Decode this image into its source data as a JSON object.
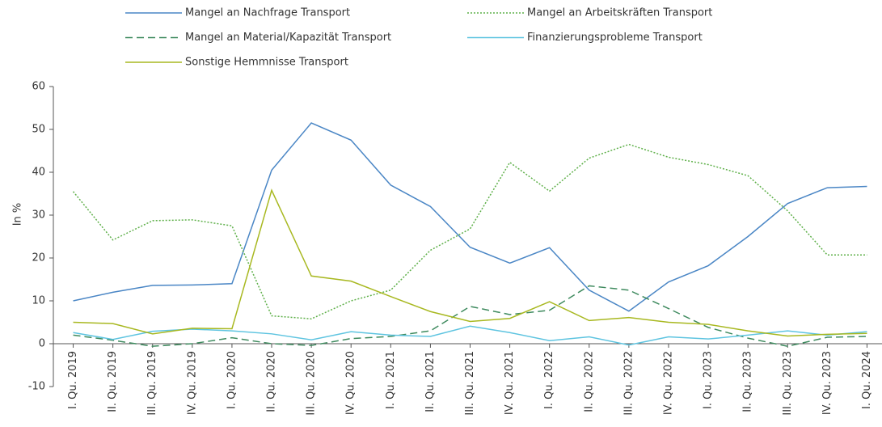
{
  "chart_data": {
    "type": "line",
    "y_label": "In %",
    "categories": [
      "I. Qu. 2019",
      "II. Qu. 2019",
      "III. Qu. 2019",
      "IV. Qu. 2019",
      "I. Qu. 2020",
      "II. Qu. 2020",
      "III. Qu. 2020",
      "IV. Qu. 2020",
      "I. Qu. 2021",
      "II. Qu. 2021",
      "III. Qu. 2021",
      "IV. Qu. 2021",
      "I. Qu. 2022",
      "II. Qu. 2022",
      "III. Qu. 2022",
      "IV. Qu. 2022",
      "I. Qu. 2023",
      "II. Qu. 2023",
      "III. Qu. 2023",
      "IV. Qu. 2023",
      "I. Qu. 2024"
    ],
    "series": [
      {
        "name": "Mangel an Nachfrage Transport",
        "color": "#4a86c5",
        "dash": "solid",
        "values": [
          10,
          12,
          13.6,
          13.7,
          14,
          40.5,
          51.5,
          47.5,
          37,
          32,
          22.5,
          18.8,
          22.4,
          12.5,
          7.6,
          14.4,
          18.2,
          25,
          32.7,
          36.4,
          36.7
        ]
      },
      {
        "name": "Mangel an Arbeitskräften Transport",
        "color": "#5fb04a",
        "dash": "dotted",
        "values": [
          35.5,
          24.2,
          28.7,
          28.9,
          27.5,
          6.5,
          5.8,
          10,
          12.5,
          21.8,
          26.8,
          42.3,
          35.6,
          43.3,
          46.5,
          43.5,
          41.8,
          39.2,
          31,
          20.7,
          20.7
        ]
      },
      {
        "name": "Mangel an Material/Kapazität Transport",
        "color": "#3e8a5e",
        "dash": "dashed",
        "values": [
          2,
          0.8,
          -0.6,
          0,
          1.4,
          0,
          -0.4,
          1.2,
          1.7,
          3,
          8.7,
          6.8,
          7.8,
          13.5,
          12.5,
          8.2,
          3.8,
          1.3,
          -0.6,
          1.5,
          1.7
        ]
      },
      {
        "name": "Finanzierungsprobleme Transport",
        "color": "#5ec4e0",
        "dash": "solid",
        "values": [
          2.6,
          1,
          2.9,
          3.4,
          3,
          2.3,
          0.9,
          2.8,
          2,
          1.7,
          4.1,
          2.6,
          0.7,
          1.6,
          -0.3,
          1.6,
          1.1,
          2,
          3,
          2,
          2.8
        ]
      },
      {
        "name": "Sonstige Hemmnisse Transport",
        "color": "#a8b820",
        "dash": "solid",
        "values": [
          5,
          4.7,
          2.3,
          3.6,
          3.5,
          35.8,
          15.8,
          14.6,
          11,
          7.5,
          5.2,
          5.9,
          9.8,
          5.4,
          6.1,
          5,
          4.5,
          3,
          1.8,
          2.2,
          2.4
        ]
      }
    ],
    "ylim": [
      -10,
      60
    ],
    "yticks": [
      -10,
      0,
      10,
      20,
      30,
      40,
      50,
      60
    ],
    "grid": false
  }
}
